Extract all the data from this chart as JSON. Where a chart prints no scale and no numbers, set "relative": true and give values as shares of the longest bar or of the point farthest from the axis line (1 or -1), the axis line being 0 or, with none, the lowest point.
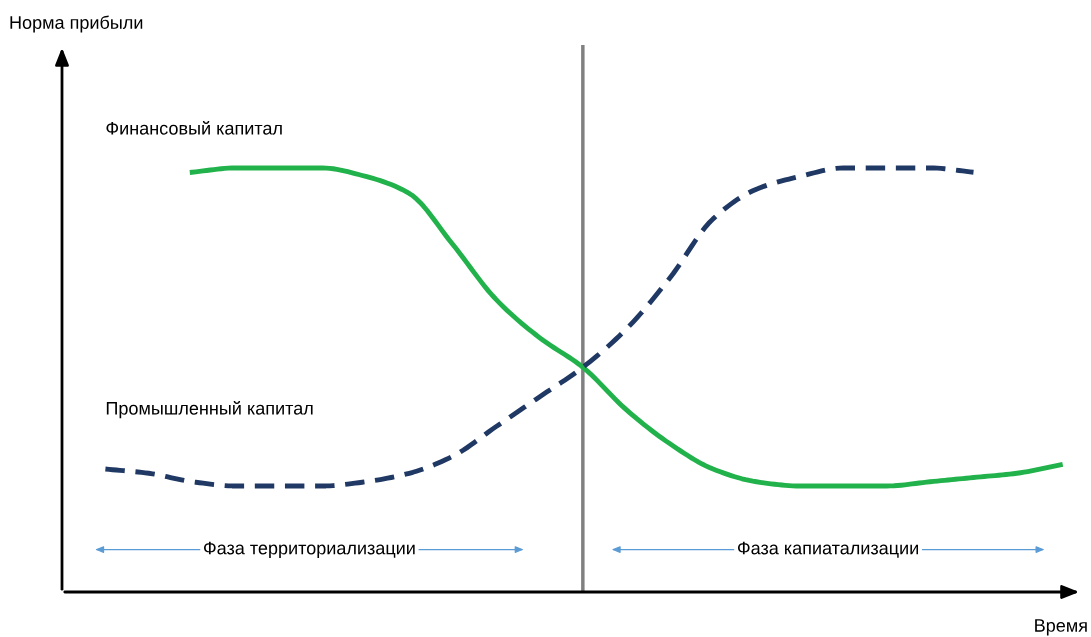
{
  "chart_data": {
    "type": "line",
    "relative": true,
    "legend": false,
    "grid": false,
    "xlabel": "Время",
    "categories": [
      null,
      null,
      null,
      null,
      null,
      null,
      null,
      null,
      null,
      null,
      null,
      null,
      null,
      null,
      null,
      null,
      null,
      null,
      null,
      null,
      null,
      null,
      null
    ],
    "series": [
      {
        "name": "Финансовый капитал",
        "color": "#22b24c",
        "line_style": "solid",
        "values": [
          null,
          null,
          0.99,
          1.0,
          1.0,
          1.0,
          0.98,
          0.94,
          0.82,
          0.69,
          0.6,
          0.53,
          0.43,
          0.35,
          0.29,
          0.26,
          0.25,
          0.25,
          0.25,
          0.26,
          0.27,
          0.28,
          0.3
        ]
      },
      {
        "name": "Промышленный капитал",
        "color": "#1f3864",
        "line_style": "dashed",
        "values": [
          0.29,
          0.28,
          0.26,
          0.25,
          0.25,
          0.25,
          0.26,
          0.28,
          0.32,
          0.39,
          0.46,
          0.53,
          0.62,
          0.74,
          0.88,
          0.95,
          0.98,
          1.0,
          1.0,
          1.0,
          0.99,
          null,
          null
        ]
      }
    ],
    "annotations": [
      "Норма прибыли",
      "Фаза территориализации",
      "Фаза капиатализации"
    ]
  }
}
